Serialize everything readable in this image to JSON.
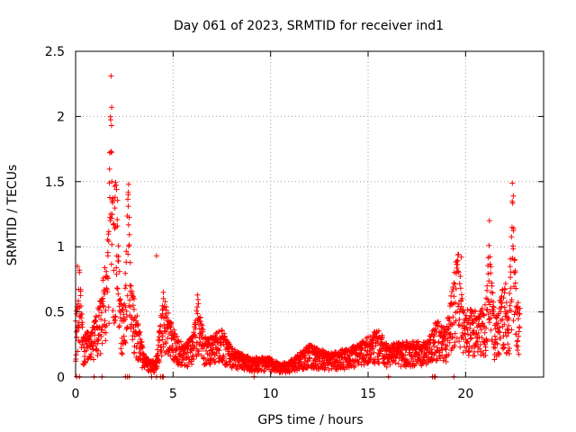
{
  "chart_data": {
    "type": "scatter",
    "title": "Day 061 of 2023, SRMTID for receiver ind1",
    "xlabel": "GPS time / hours",
    "ylabel": "SRMTID / TECUs",
    "xlim": [
      0,
      24
    ],
    "ylim": [
      0,
      2.5
    ],
    "xticks": [
      0,
      5,
      10,
      15,
      20
    ],
    "xtick_labels": [
      "0",
      "5",
      "10",
      "15",
      "20"
    ],
    "yticks": [
      0,
      0.5,
      1,
      1.5,
      2,
      2.5
    ],
    "ytick_labels": [
      "0",
      "0.5",
      "1",
      "1.5",
      "2",
      "2.5"
    ],
    "grid": true,
    "marker": "+",
    "series": [
      {
        "name": "SRMTID",
        "color": "#ff0000",
        "profile": [
          [
            0.0,
            0.35
          ],
          [
            0.2,
            0.7
          ],
          [
            0.4,
            0.25
          ],
          [
            0.7,
            0.3
          ],
          [
            1.0,
            0.35
          ],
          [
            1.3,
            0.5
          ],
          [
            1.5,
            0.7
          ],
          [
            1.7,
            0.9
          ],
          [
            1.8,
            2.0
          ],
          [
            1.9,
            1.1
          ],
          [
            2.1,
            1.3
          ],
          [
            2.3,
            0.5
          ],
          [
            2.5,
            0.45
          ],
          [
            2.7,
            1.2
          ],
          [
            2.9,
            0.55
          ],
          [
            3.2,
            0.35
          ],
          [
            3.5,
            0.15
          ],
          [
            3.8,
            0.1
          ],
          [
            4.1,
            0.1
          ],
          [
            4.5,
            0.5
          ],
          [
            4.8,
            0.4
          ],
          [
            5.0,
            0.3
          ],
          [
            5.5,
            0.2
          ],
          [
            6.0,
            0.25
          ],
          [
            6.3,
            0.5
          ],
          [
            6.6,
            0.25
          ],
          [
            7.0,
            0.25
          ],
          [
            7.5,
            0.3
          ],
          [
            8.0,
            0.18
          ],
          [
            9.0,
            0.12
          ],
          [
            10.0,
            0.12
          ],
          [
            10.5,
            0.08
          ],
          [
            11.0,
            0.1
          ],
          [
            11.5,
            0.15
          ],
          [
            12.0,
            0.2
          ],
          [
            13.0,
            0.15
          ],
          [
            14.0,
            0.18
          ],
          [
            14.5,
            0.2
          ],
          [
            15.0,
            0.25
          ],
          [
            15.5,
            0.3
          ],
          [
            16.0,
            0.2
          ],
          [
            17.0,
            0.22
          ],
          [
            18.0,
            0.22
          ],
          [
            18.5,
            0.35
          ],
          [
            19.0,
            0.3
          ],
          [
            19.3,
            0.55
          ],
          [
            19.6,
            0.8
          ],
          [
            19.9,
            0.4
          ],
          [
            20.2,
            0.45
          ],
          [
            20.6,
            0.4
          ],
          [
            21.0,
            0.45
          ],
          [
            21.2,
            0.85
          ],
          [
            21.5,
            0.35
          ],
          [
            21.8,
            0.5
          ],
          [
            22.0,
            0.65
          ],
          [
            22.2,
            0.35
          ],
          [
            22.4,
            1.2
          ],
          [
            22.6,
            0.5
          ],
          [
            22.8,
            0.45
          ]
        ],
        "peaks": [
          [
            1.82,
            2.31
          ],
          [
            1.85,
            2.07
          ],
          [
            1.84,
            1.93
          ],
          [
            1.86,
            1.5
          ],
          [
            2.72,
            1.48
          ],
          [
            2.7,
            1.4
          ],
          [
            2.02,
            1.38
          ],
          [
            22.45,
            1.39
          ],
          [
            21.22,
            1.2
          ],
          [
            4.15,
            0.93
          ],
          [
            19.78,
            0.92
          ],
          [
            0.1,
            0.85
          ],
          [
            3.0,
            0.6
          ],
          [
            6.25,
            0.63
          ],
          [
            4.5,
            0.65
          ]
        ],
        "zero_points": [
          0.05,
          0.2,
          0.95,
          1.35,
          2.55,
          2.65,
          2.75,
          3.9,
          4.15,
          4.35,
          4.45,
          4.5,
          9.15,
          16.05,
          18.3,
          18.4,
          18.45,
          19.4
        ]
      }
    ]
  }
}
